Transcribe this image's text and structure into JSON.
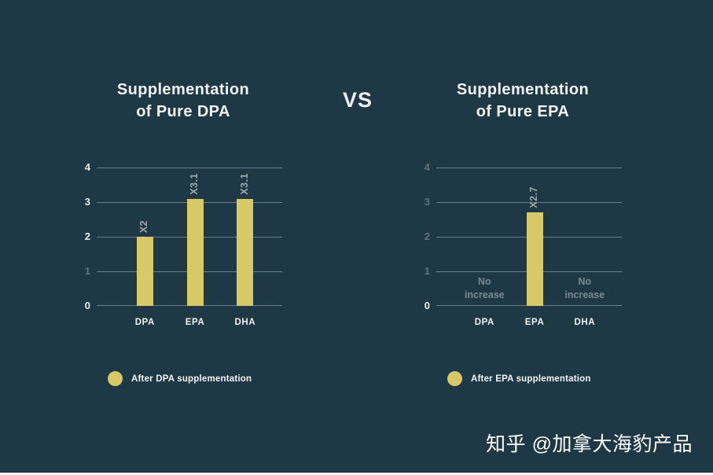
{
  "background": "#1e3845",
  "accent_bar_color": "#d8c968",
  "vs_label": "VS",
  "watermark": "知乎 @加拿大海豹产品",
  "chart_data": [
    {
      "type": "bar",
      "title": "Supplementation\nof Pure DPA",
      "categories": [
        "DPA",
        "EPA",
        "DHA"
      ],
      "values": [
        2,
        3.1,
        3.1
      ],
      "bar_labels": [
        "X2",
        "X3.1",
        "X3.1"
      ],
      "ylim": [
        0,
        4
      ],
      "yticks": [
        0,
        1,
        2,
        3,
        4
      ],
      "dim_yticks": [
        1
      ],
      "grid": true,
      "bar_color": "#d8c968",
      "legend": "After DPA supplementation",
      "legend_position": "bottom-left"
    },
    {
      "type": "bar",
      "title": "Supplementation\nof Pure EPA",
      "categories": [
        "DPA",
        "EPA",
        "DHA"
      ],
      "values": [
        null,
        2.7,
        null
      ],
      "bar_labels": [
        "",
        "X2.7",
        ""
      ],
      "no_bar_text": "No increase",
      "ylim": [
        0,
        4
      ],
      "yticks": [
        0,
        1,
        2,
        3,
        4
      ],
      "dim_yticks": [
        1,
        2,
        3,
        4
      ],
      "grid": true,
      "bar_color": "#d8c968",
      "legend": "After EPA supplementation",
      "legend_position": "bottom-left"
    }
  ]
}
